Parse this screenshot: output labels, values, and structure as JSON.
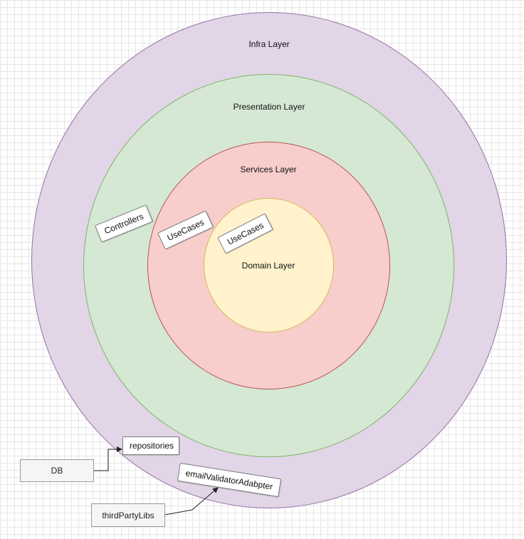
{
  "diagram": {
    "layers": {
      "infra": {
        "label": "Infra Layer",
        "fill": "#e1d5e7",
        "stroke": "#9673a6"
      },
      "presentation": {
        "label": "Presentation Layer",
        "fill": "#d5e8d4",
        "stroke": "#82b366"
      },
      "services": {
        "label": "Services Layer",
        "fill": "#f8cecc",
        "stroke": "#b85450"
      },
      "domain": {
        "label": "Domain Layer",
        "fill": "#fff2cc",
        "stroke": "#d6b656"
      }
    },
    "tags": {
      "controllers": "Controllers",
      "usecases_services": "UseCases",
      "usecases_domain": "UseCases",
      "repositories": "repositories",
      "email_adapter": "emailValidatorAdabpter"
    },
    "external": {
      "db": "DB",
      "third_party": "thirdPartyLibs"
    }
  }
}
